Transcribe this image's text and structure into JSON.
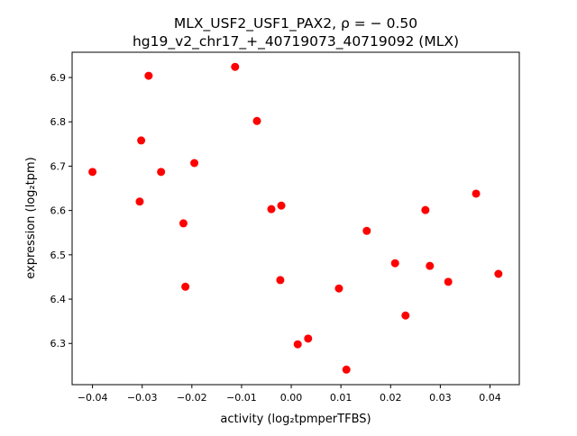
{
  "chart_data": {
    "type": "scatter",
    "title_line1": "MLX_USF2_USF1_PAX2, ρ = − 0.50",
    "title_line2": "hg19_v2_chr17_+_40719073_40719092 (MLX)",
    "xlabel": "activity (log₂tpmperTFBS)",
    "ylabel": "expression (log₂tpm)",
    "xlim": [
      -0.0441,
      0.0459
    ],
    "ylim": [
      6.207,
      6.957
    ],
    "xticks": [
      -0.04,
      -0.03,
      -0.02,
      -0.01,
      0.0,
      0.01,
      0.02,
      0.03,
      0.04
    ],
    "xtick_labels": [
      "−0.04",
      "−0.03",
      "−0.02",
      "−0.01",
      "0.00",
      "0.01",
      "0.02",
      "0.03",
      "0.04"
    ],
    "yticks": [
      6.3,
      6.4,
      6.5,
      6.6,
      6.7,
      6.8,
      6.9
    ],
    "ytick_labels": [
      "6.3",
      "6.4",
      "6.5",
      "6.6",
      "6.7",
      "6.8",
      "6.9"
    ],
    "grid": false,
    "point_color": "#ff0000",
    "points": [
      [
        -0.04,
        6.687
      ],
      [
        -0.0287,
        6.904
      ],
      [
        -0.0302,
        6.758
      ],
      [
        -0.0305,
        6.62
      ],
      [
        -0.0262,
        6.687
      ],
      [
        -0.0195,
        6.707
      ],
      [
        -0.0217,
        6.571
      ],
      [
        -0.0213,
        6.428
      ],
      [
        -0.0113,
        6.924
      ],
      [
        -0.0069,
        6.802
      ],
      [
        -0.004,
        6.603
      ],
      [
        -0.002,
        6.611
      ],
      [
        -0.0022,
        6.443
      ],
      [
        0.0013,
        6.298
      ],
      [
        0.0034,
        6.311
      ],
      [
        0.0096,
        6.424
      ],
      [
        0.0111,
        6.241
      ],
      [
        0.0152,
        6.554
      ],
      [
        0.0209,
        6.481
      ],
      [
        0.023,
        6.363
      ],
      [
        0.027,
        6.601
      ],
      [
        0.0279,
        6.475
      ],
      [
        0.0316,
        6.439
      ],
      [
        0.0372,
        6.638
      ],
      [
        0.0417,
        6.457
      ]
    ]
  }
}
